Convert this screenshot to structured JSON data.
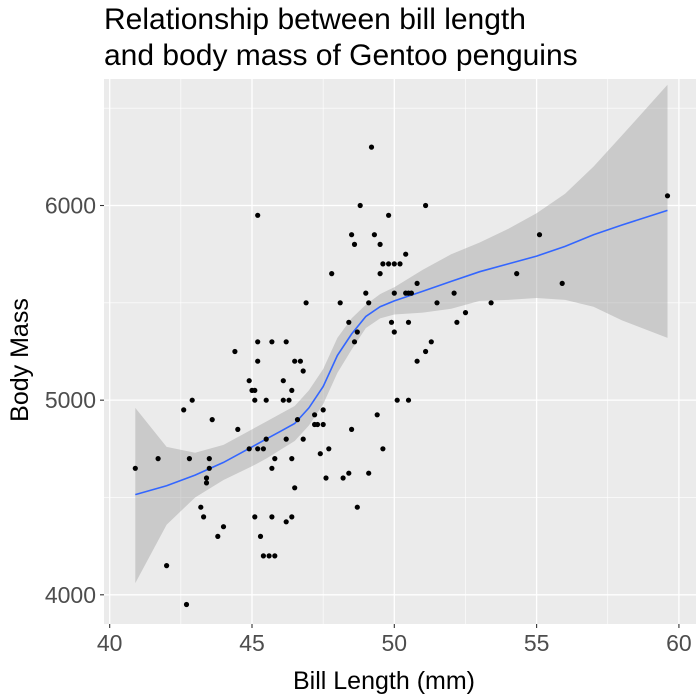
{
  "chart_data": {
    "type": "scatter",
    "title": [
      "Relationship between bill length",
      "and body mass of Gentoo penguins"
    ],
    "xlabel": "Bill Length (mm)",
    "ylabel": "Body Mass",
    "xlim": [
      39.8,
      60.6
    ],
    "ylim": [
      3850,
      6650
    ],
    "x_ticks": [
      40,
      45,
      50,
      55,
      60
    ],
    "x_tick_labels": [
      "40",
      "45",
      "50",
      "55",
      "60"
    ],
    "y_ticks": [
      4000,
      5000,
      6000
    ],
    "y_tick_labels": [
      "4000",
      "5000",
      "6000"
    ],
    "grid": true,
    "colors": {
      "panel": "#ebebeb",
      "grid": "#ffffff",
      "points": "#000000",
      "smooth_line": "#3366ff",
      "confidence_band": "#999999"
    },
    "points": [
      {
        "x": 40.9,
        "y": 4650
      },
      {
        "x": 41.7,
        "y": 4700
      },
      {
        "x": 42.0,
        "y": 4150
      },
      {
        "x": 42.6,
        "y": 4950
      },
      {
        "x": 42.7,
        "y": 3950
      },
      {
        "x": 42.8,
        "y": 4700
      },
      {
        "x": 42.9,
        "y": 5000
      },
      {
        "x": 43.2,
        "y": 4450
      },
      {
        "x": 43.3,
        "y": 4400
      },
      {
        "x": 43.4,
        "y": 4575
      },
      {
        "x": 43.4,
        "y": 4600
      },
      {
        "x": 43.5,
        "y": 4650
      },
      {
        "x": 43.5,
        "y": 4700
      },
      {
        "x": 43.6,
        "y": 4900
      },
      {
        "x": 43.8,
        "y": 4300
      },
      {
        "x": 44.0,
        "y": 4350
      },
      {
        "x": 44.4,
        "y": 5250
      },
      {
        "x": 44.5,
        "y": 4850
      },
      {
        "x": 44.9,
        "y": 4750
      },
      {
        "x": 44.9,
        "y": 5100
      },
      {
        "x": 45.0,
        "y": 5050
      },
      {
        "x": 45.1,
        "y": 5000
      },
      {
        "x": 45.1,
        "y": 5050
      },
      {
        "x": 45.1,
        "y": 4400
      },
      {
        "x": 45.2,
        "y": 4750
      },
      {
        "x": 45.2,
        "y": 5200
      },
      {
        "x": 45.2,
        "y": 5300
      },
      {
        "x": 45.2,
        "y": 5950
      },
      {
        "x": 45.3,
        "y": 4300
      },
      {
        "x": 45.4,
        "y": 4200
      },
      {
        "x": 45.4,
        "y": 4750
      },
      {
        "x": 45.5,
        "y": 5000
      },
      {
        "x": 45.5,
        "y": 4800
      },
      {
        "x": 45.6,
        "y": 4200
      },
      {
        "x": 45.7,
        "y": 4650
      },
      {
        "x": 45.7,
        "y": 4400
      },
      {
        "x": 45.7,
        "y": 5300
      },
      {
        "x": 45.8,
        "y": 4200
      },
      {
        "x": 45.8,
        "y": 4700
      },
      {
        "x": 46.1,
        "y": 5000
      },
      {
        "x": 46.1,
        "y": 5100
      },
      {
        "x": 46.2,
        "y": 4800
      },
      {
        "x": 46.2,
        "y": 4375
      },
      {
        "x": 46.2,
        "y": 5300
      },
      {
        "x": 46.3,
        "y": 5000
      },
      {
        "x": 46.4,
        "y": 4700
      },
      {
        "x": 46.4,
        "y": 4400
      },
      {
        "x": 46.4,
        "y": 5050
      },
      {
        "x": 46.5,
        "y": 4550
      },
      {
        "x": 46.5,
        "y": 5200
      },
      {
        "x": 46.6,
        "y": 4900
      },
      {
        "x": 46.7,
        "y": 5200
      },
      {
        "x": 46.8,
        "y": 5150
      },
      {
        "x": 46.8,
        "y": 4800
      },
      {
        "x": 46.9,
        "y": 5500
      },
      {
        "x": 47.2,
        "y": 4925
      },
      {
        "x": 47.2,
        "y": 4875
      },
      {
        "x": 47.3,
        "y": 4875
      },
      {
        "x": 47.4,
        "y": 4725
      },
      {
        "x": 47.5,
        "y": 4875
      },
      {
        "x": 47.5,
        "y": 4950
      },
      {
        "x": 47.6,
        "y": 4600
      },
      {
        "x": 47.7,
        "y": 4750
      },
      {
        "x": 47.8,
        "y": 5650
      },
      {
        "x": 48.1,
        "y": 5500
      },
      {
        "x": 48.2,
        "y": 4600
      },
      {
        "x": 48.4,
        "y": 4625
      },
      {
        "x": 48.4,
        "y": 5400
      },
      {
        "x": 48.5,
        "y": 4850
      },
      {
        "x": 48.5,
        "y": 5850
      },
      {
        "x": 48.6,
        "y": 5800
      },
      {
        "x": 48.6,
        "y": 5300
      },
      {
        "x": 48.7,
        "y": 4450
      },
      {
        "x": 48.7,
        "y": 5350
      },
      {
        "x": 48.8,
        "y": 6000
      },
      {
        "x": 49.0,
        "y": 5550
      },
      {
        "x": 49.1,
        "y": 4625
      },
      {
        "x": 49.1,
        "y": 5500
      },
      {
        "x": 49.2,
        "y": 6300
      },
      {
        "x": 49.3,
        "y": 5850
      },
      {
        "x": 49.4,
        "y": 4925
      },
      {
        "x": 49.5,
        "y": 5650
      },
      {
        "x": 49.5,
        "y": 5800
      },
      {
        "x": 49.6,
        "y": 4750
      },
      {
        "x": 49.6,
        "y": 5700
      },
      {
        "x": 49.8,
        "y": 5700
      },
      {
        "x": 49.8,
        "y": 5950
      },
      {
        "x": 49.9,
        "y": 5400
      },
      {
        "x": 50.0,
        "y": 5700
      },
      {
        "x": 50.0,
        "y": 5550
      },
      {
        "x": 50.0,
        "y": 5350
      },
      {
        "x": 50.1,
        "y": 5000
      },
      {
        "x": 50.2,
        "y": 5700
      },
      {
        "x": 50.4,
        "y": 5550
      },
      {
        "x": 50.4,
        "y": 5750
      },
      {
        "x": 50.5,
        "y": 5550
      },
      {
        "x": 50.5,
        "y": 5400
      },
      {
        "x": 50.5,
        "y": 5000
      },
      {
        "x": 50.6,
        "y": 5550
      },
      {
        "x": 50.8,
        "y": 5200
      },
      {
        "x": 50.8,
        "y": 5600
      },
      {
        "x": 51.1,
        "y": 5250
      },
      {
        "x": 51.1,
        "y": 6000
      },
      {
        "x": 51.3,
        "y": 5300
      },
      {
        "x": 51.5,
        "y": 5500
      },
      {
        "x": 52.1,
        "y": 5550
      },
      {
        "x": 52.2,
        "y": 5400
      },
      {
        "x": 52.5,
        "y": 5450
      },
      {
        "x": 53.4,
        "y": 5500
      },
      {
        "x": 54.3,
        "y": 5650
      },
      {
        "x": 55.1,
        "y": 5850
      },
      {
        "x": 55.9,
        "y": 5600
      },
      {
        "x": 59.6,
        "y": 6050
      }
    ],
    "smooth": {
      "x": [
        40.9,
        42.0,
        43.0,
        44.0,
        45.0,
        45.5,
        46.0,
        46.5,
        47.0,
        47.5,
        48.0,
        48.5,
        49.0,
        49.5,
        50.0,
        51.0,
        52.0,
        53.0,
        54.0,
        55.0,
        56.0,
        57.0,
        58.0,
        59.6
      ],
      "y": [
        4515,
        4560,
        4615,
        4680,
        4760,
        4800,
        4840,
        4880,
        4960,
        5070,
        5230,
        5340,
        5430,
        5480,
        5510,
        5560,
        5610,
        5660,
        5700,
        5740,
        5790,
        5850,
        5900,
        5975
      ],
      "lower": [
        4060,
        4360,
        4500,
        4590,
        4660,
        4700,
        4745,
        4790,
        4870,
        4980,
        5140,
        5260,
        5370,
        5420,
        5440,
        5450,
        5470,
        5510,
        5515,
        5525,
        5515,
        5480,
        5410,
        5320
      ],
      "upper": [
        4960,
        4760,
        4730,
        4770,
        4850,
        4890,
        4930,
        4970,
        5050,
        5160,
        5320,
        5420,
        5490,
        5545,
        5580,
        5670,
        5750,
        5810,
        5880,
        5960,
        6060,
        6200,
        6360,
        6620
      ]
    }
  }
}
